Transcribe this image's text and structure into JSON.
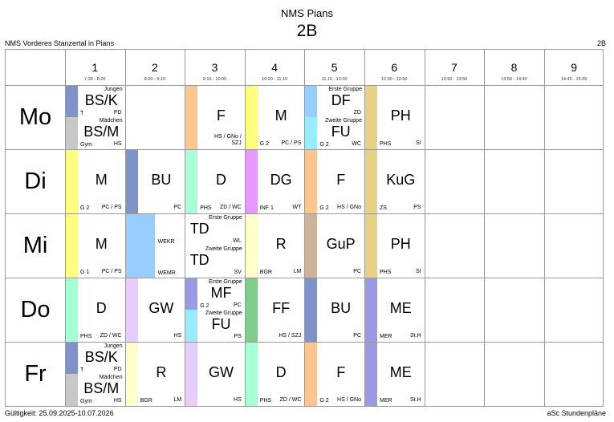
{
  "header": {
    "school": "NMS Pians",
    "class": "2B",
    "school_full": "NMS Vorderes Stanzertal in Pians",
    "class_right": "2B"
  },
  "footer": {
    "validity": "Gültigkeit: 25.09.2025-10.07.2026",
    "brand": "aSc Stundenpläne"
  },
  "periods": [
    {
      "n": "1",
      "time": "7:30 - 8:20"
    },
    {
      "n": "2",
      "time": "8:20 - 9:10"
    },
    {
      "n": "3",
      "time": "9:15 - 10:05"
    },
    {
      "n": "4",
      "time": "10:20 - 11:10"
    },
    {
      "n": "5",
      "time": "11:10 - 12:00"
    },
    {
      "n": "6",
      "time": "12:00 - 12:50"
    },
    {
      "n": "7",
      "time": "12:50 - 13:50"
    },
    {
      "n": "8",
      "time": "13:50 - 14:40"
    },
    {
      "n": "9",
      "time": "14:45 - 15:35"
    }
  ],
  "days": [
    "Mo",
    "Di",
    "Mi",
    "Do",
    "Fr"
  ],
  "colors": {
    "blue": "#7f93c9",
    "gray": "#c8c8c8",
    "orange": "#ffc58f",
    "yellow": "#ffff7f",
    "lightblue": "#99ccff",
    "cyan": "#99ebff",
    "khaki": "#e6d184",
    "mint": "#a6ffd6",
    "pink": "#e699ff",
    "tan": "#ccb399",
    "cream": "#ffffcc",
    "lavender": "#e6ccff",
    "violet": "#9999e6",
    "green": "#80cc8c"
  },
  "lessons": {
    "mo1a": {
      "subject": "BS/K",
      "group": "Jungen",
      "left": "T",
      "right": "PD"
    },
    "mo1b": {
      "subject": "BS/M",
      "group": "Mädchen",
      "left": "Gym",
      "right": "HS"
    },
    "mo3": {
      "subject": "F",
      "right1": "HS / GNo /",
      "right2": "SZJ"
    },
    "mo4": {
      "subject": "M",
      "left": "G 2",
      "right": "PC / PS"
    },
    "mo5a": {
      "subject": "DF",
      "group": "Erste Gruppe",
      "right": "ZD"
    },
    "mo5b": {
      "subject": "FU",
      "group": "Zweite Gruppe",
      "left": "G 2",
      "right": "WC"
    },
    "mo6": {
      "subject": "PH",
      "left": "PHS",
      "right": "SI"
    },
    "di1": {
      "subject": "M",
      "left": "G 2",
      "right": "PC / PS"
    },
    "di2": {
      "subject": "BU",
      "right": "PC"
    },
    "di3": {
      "subject": "D",
      "left": "PHS",
      "right": "ZD / WC"
    },
    "di4": {
      "subject": "DG",
      "left": "INF 1",
      "right": "WT"
    },
    "di5": {
      "subject": "F",
      "left": "G 2",
      "right": "HS / GNo"
    },
    "di6": {
      "subject": "KuG",
      "left": "ZS",
      "right": "PS"
    },
    "mi1": {
      "subject": "M",
      "left": "G 1",
      "right": "PC / PS"
    },
    "mi23a": {
      "subject": "TD",
      "group": "Erste Gruppe",
      "left": "WEKR",
      "right": "WL"
    },
    "mi23b": {
      "subject": "TD",
      "group": "Zweite Gruppe",
      "left": "WEMR",
      "right": "SV"
    },
    "mi4": {
      "subject": "R",
      "left": "BGR",
      "right": "LM"
    },
    "mi5": {
      "subject": "GuP",
      "right": "PC"
    },
    "mi6": {
      "subject": "PH",
      "left": "PHS",
      "right": "SI"
    },
    "do1": {
      "subject": "D",
      "left": "PHS",
      "right": "ZD / WC"
    },
    "do2": {
      "subject": "GW",
      "right": "HS"
    },
    "do3a": {
      "subject": "MF",
      "group": "Erste Gruppe",
      "left": "G 2",
      "right": "PC"
    },
    "do3b": {
      "subject": "FU",
      "group": "Zweite Gruppe",
      "right": "PS"
    },
    "do4": {
      "subject": "FF",
      "right": "HS / SZJ"
    },
    "do5": {
      "subject": "BU",
      "right": "PC"
    },
    "do6": {
      "subject": "ME",
      "left": "MER",
      "right": "St.H"
    },
    "fr1a": {
      "subject": "BS/K",
      "group": "Jungen",
      "left": "T",
      "right": "PD"
    },
    "fr1b": {
      "subject": "BS/M",
      "group": "Mädchen",
      "left": "Gym",
      "right": "HS"
    },
    "fr2": {
      "subject": "R",
      "left": "BGR",
      "right": "LM"
    },
    "fr3": {
      "subject": "GW",
      "right": "HS"
    },
    "fr4": {
      "subject": "D",
      "left": "PHS",
      "right": "ZD / WC"
    },
    "fr5": {
      "subject": "F",
      "left": "G 2",
      "right": "HS / GNo"
    },
    "fr6": {
      "subject": "ME",
      "left": "MER",
      "right": "St.H"
    }
  }
}
